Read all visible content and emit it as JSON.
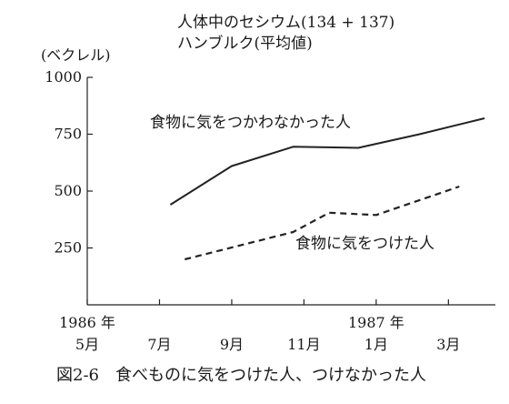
{
  "chart_data": {
    "type": "line",
    "title": "人体中のセシウム(134 + 137)",
    "subtitle": "ハンブルク(平均値)",
    "ylabel": "(ベクレル)",
    "xlabel": "",
    "ylim": [
      0,
      1000
    ],
    "yticks": [
      250,
      500,
      750,
      1000
    ],
    "x_ticks": [
      {
        "month": 0,
        "label": "5月",
        "year_label": "1986 年"
      },
      {
        "month": 2,
        "label": "7月"
      },
      {
        "month": 4,
        "label": "9月"
      },
      {
        "month": 6,
        "label": "11月"
      },
      {
        "month": 8,
        "label": "1月",
        "year_label": "1987 年"
      },
      {
        "month": 10,
        "label": "3月"
      }
    ],
    "xlim": [
      0,
      11.3
    ],
    "series": [
      {
        "name": "食物に気をつかわなかった人",
        "style": "solid",
        "color": "#222222",
        "points": [
          [
            2.3,
            440
          ],
          [
            4.0,
            610
          ],
          [
            5.7,
            695
          ],
          [
            7.5,
            690
          ],
          [
            9.2,
            750
          ],
          [
            11.0,
            820
          ]
        ]
      },
      {
        "name": "食物に気をつけた人",
        "style": "dashed",
        "color": "#222222",
        "points": [
          [
            2.7,
            200
          ],
          [
            4.7,
            280
          ],
          [
            5.7,
            320
          ],
          [
            6.7,
            405
          ],
          [
            8.0,
            395
          ],
          [
            10.3,
            520
          ]
        ]
      }
    ],
    "caption": "図2-6　食べものに気をつけた人、つけなかった人",
    "grid": false,
    "legend": "inline annotations"
  }
}
